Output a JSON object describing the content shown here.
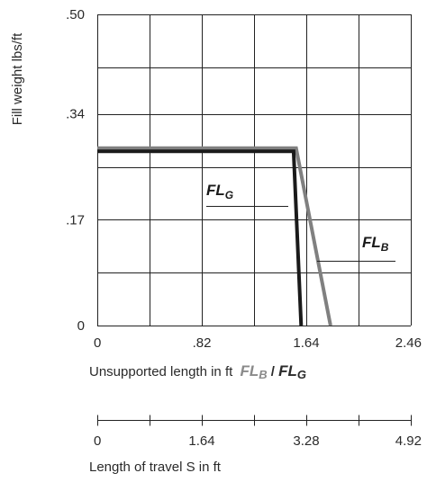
{
  "chart_data": [
    {
      "type": "line",
      "title": "",
      "ylabel": "Fill weight lbs/ft",
      "xlabel": {
        "prefix": "Unsupported length in ft",
        "series_a": "FL",
        "series_a_sub": "B",
        "separator": " / ",
        "series_b": "FL",
        "series_b_sub": "G"
      },
      "xlim": [
        0,
        2.46
      ],
      "ylim": [
        0,
        0.5
      ],
      "x_ticks": [
        0,
        0.82,
        1.64,
        2.46
      ],
      "x_tick_labels": [
        "0",
        ".82",
        "1.64",
        "2.46"
      ],
      "y_ticks": [
        0,
        0.17,
        0.34,
        0.5
      ],
      "y_tick_labels": [
        "0",
        ".17",
        ".34",
        ".50"
      ],
      "grid": true,
      "grid_x_minor": [
        0.41,
        1.23,
        2.05
      ],
      "grid_y_minor": [
        0.085,
        0.255,
        0.415
      ],
      "series": [
        {
          "name": "FL",
          "name_sub": "G",
          "color": "#1a1a1a",
          "x": [
            0,
            1.54,
            1.6
          ],
          "y": [
            0.28,
            0.28,
            0
          ]
        },
        {
          "name": "FL",
          "name_sub": "B",
          "color": "#808080",
          "x": [
            0,
            1.56,
            1.83
          ],
          "y": [
            0.285,
            0.285,
            0
          ]
        }
      ]
    },
    {
      "type": "axis",
      "xlabel": "Length of travel S in ft",
      "xlim": [
        0,
        4.92
      ],
      "x_ticks": [
        0,
        0.82,
        1.64,
        2.46,
        3.28,
        4.1,
        4.92
      ],
      "x_tick_labels": [
        "0",
        "1.64",
        "3.28",
        "4.92"
      ],
      "x_tick_label_values": [
        0,
        1.64,
        3.28,
        4.92
      ]
    }
  ]
}
